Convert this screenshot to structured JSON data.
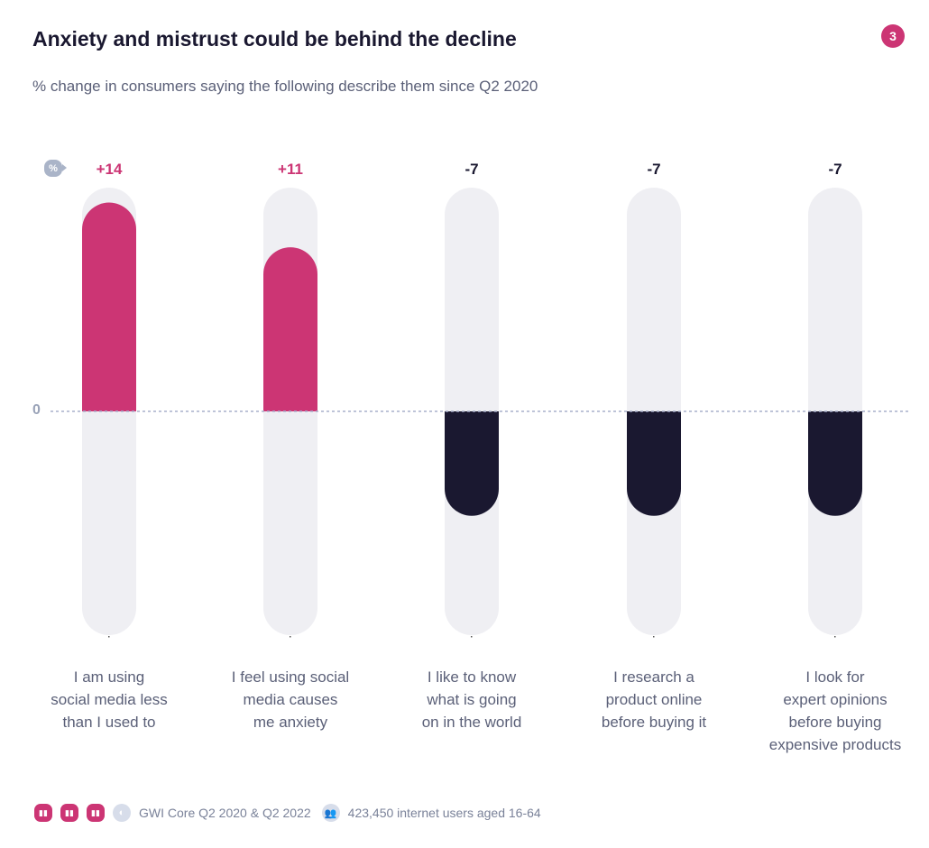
{
  "header": {
    "title": "Anxiety and mistrust could be behind the decline",
    "subtitle": "% change in consumers saying the following describe them since Q2 2020",
    "badge": "3"
  },
  "chart_data": {
    "type": "bar",
    "unit_badge": "%",
    "zero_label": "0",
    "categories": [
      "I am using social media less than I used to",
      "I feel using social media causes me anxiety",
      "I like to know what is going on in the world",
      "I research a product online before buying it",
      "I look for expert opinions before buying expensive products"
    ],
    "category_lines": [
      [
        "I am using",
        "social media less",
        "than I used to"
      ],
      [
        "I feel using social",
        "media causes",
        "me anxiety"
      ],
      [
        "I like to know",
        "what is going",
        "on in the world"
      ],
      [
        "I research a",
        "product online",
        "before buying it"
      ],
      [
        "I look for",
        "expert opinions",
        "before buying",
        "expensive products"
      ]
    ],
    "values": [
      14,
      11,
      -7,
      -7,
      -7
    ],
    "data_labels": [
      "+14",
      "+11",
      "-7",
      "-7",
      "-7"
    ],
    "ylim": [
      -15,
      15
    ],
    "colors": {
      "positive": "#cc3574",
      "negative": "#1a1830",
      "track": "#efeff3"
    }
  },
  "footer": {
    "source": "GWI Core Q2 2020 & Q2 2022",
    "sample": "423,450 internet users aged 16-64",
    "icons": [
      "bar-chart-icon",
      "bar-chart-icon",
      "bar-chart-icon",
      "globe-icon",
      "users-icon"
    ]
  }
}
